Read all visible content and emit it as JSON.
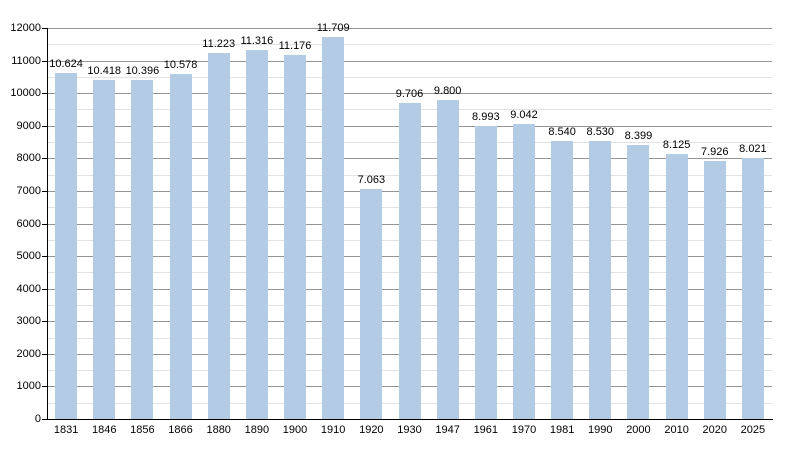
{
  "chart_data": {
    "type": "bar",
    "title": "",
    "xlabel": "",
    "ylabel": "",
    "categories": [
      "1831",
      "1846",
      "1856",
      "1866",
      "1880",
      "1890",
      "1900",
      "1910",
      "1920",
      "1930",
      "1947",
      "1961",
      "1970",
      "1981",
      "1990",
      "2000",
      "2010",
      "2020",
      "2025"
    ],
    "values": [
      10624,
      10418,
      10396,
      10578,
      11223,
      11316,
      11176,
      11709,
      7063,
      9706,
      9800,
      8993,
      9042,
      8540,
      8530,
      8399,
      8125,
      7926,
      8021
    ],
    "value_labels": [
      "10.624",
      "10.418",
      "10.396",
      "10.578",
      "11.223",
      "11.316",
      "11.176",
      "11.709",
      "7.063",
      "9.706",
      "9.800",
      "8.993",
      "9.042",
      "8.540",
      "8.530",
      "8.399",
      "8.125",
      "7.926",
      "8.021"
    ],
    "ylim": [
      0,
      12000
    ],
    "y_major_step": 1000,
    "y_minor_step": 500,
    "grid": "major+minor horizontal",
    "legend": "none",
    "colors": {
      "bar_fill": "#b3cbe5",
      "major_gridline": "#949494",
      "minor_gridline": "#e2e2e2",
      "axis": "#000000",
      "text": "#000000",
      "background": "#ffffff"
    }
  }
}
